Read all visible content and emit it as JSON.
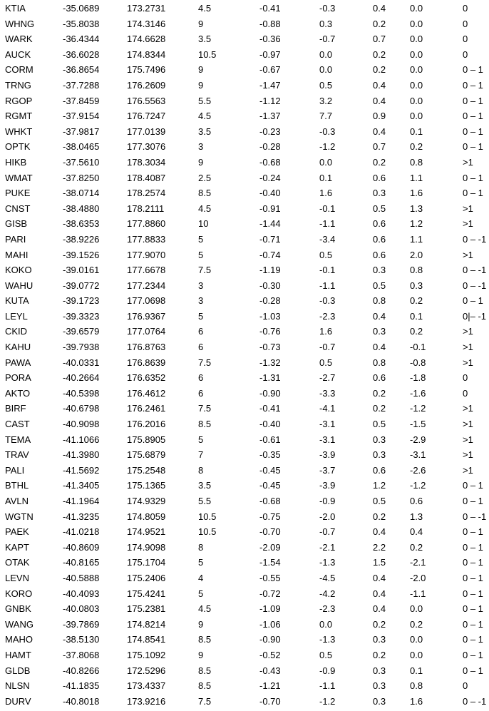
{
  "rows": [
    [
      "KTIA",
      "-35.0689",
      "173.2731",
      "4.5",
      "-0.41",
      "-0.3",
      "0.4",
      "0.0",
      "0"
    ],
    [
      "WHNG",
      "-35.8038",
      "174.3146",
      "9",
      "-0.88",
      "0.3",
      "0.2",
      "0.0",
      "0"
    ],
    [
      "WARK",
      "-36.4344",
      "174.6628",
      "3.5",
      "-0.36",
      "-0.7",
      "0.7",
      "0.0",
      "0"
    ],
    [
      "AUCK",
      "-36.6028",
      "174.8344",
      "10.5",
      "-0.97",
      "0.0",
      "0.2",
      "0.0",
      "0"
    ],
    [
      "CORM",
      "-36.8654",
      "175.7496",
      "9",
      "-0.67",
      "0.0",
      "0.2",
      "0.0",
      "0 – 1"
    ],
    [
      "TRNG",
      "-37.7288",
      "176.2609",
      "9",
      "-1.47",
      "0.5",
      "0.4",
      "0.0",
      "0 – 1"
    ],
    [
      "RGOP",
      "-37.8459",
      "176.5563",
      "5.5",
      "-1.12",
      "3.2",
      "0.4",
      "0.0",
      "0 – 1"
    ],
    [
      "RGMT",
      "-37.9154",
      "176.7247",
      "4.5",
      "-1.37",
      "7.7",
      "0.9",
      "0.0",
      "0 – 1"
    ],
    [
      "WHKT",
      "-37.9817",
      "177.0139",
      "3.5",
      "-0.23",
      "-0.3",
      "0.4",
      "0.1",
      "0 – 1"
    ],
    [
      "OPTK",
      "-38.0465",
      "177.3076",
      "3",
      "-0.28",
      "-1.2",
      "0.7",
      "0.2",
      "0 – 1"
    ],
    [
      "HIKB",
      "-37.5610",
      "178.3034",
      "9",
      "-0.68",
      "0.0",
      "0.2",
      "0.8",
      ">1"
    ],
    [
      "WMAT",
      "-37.8250",
      "178.4087",
      "2.5",
      "-0.24",
      "0.1",
      "0.6",
      "1.1",
      "0 – 1"
    ],
    [
      "PUKE",
      "-38.0714",
      "178.2574",
      "8.5",
      "-0.40",
      "1.6",
      "0.3",
      "1.6",
      "0 – 1"
    ],
    [
      "CNST",
      "-38.4880",
      "178.2111",
      "4.5",
      "-0.91",
      "-0.1",
      "0.5",
      "1.3",
      ">1"
    ],
    [
      "GISB",
      "-38.6353",
      "177.8860",
      "10",
      "-1.44",
      "-1.1",
      "0.6",
      "1.2",
      ">1"
    ],
    [
      "PARI",
      "-38.9226",
      "177.8833",
      "5",
      "-0.71",
      "-3.4",
      "0.6",
      "1.1",
      "0 – -1"
    ],
    [
      "MAHI",
      "-39.1526",
      "177.9070",
      "5",
      "-0.74",
      "0.5",
      "0.6",
      "2.0",
      ">1"
    ],
    [
      "KOKO",
      "-39.0161",
      "177.6678",
      "7.5",
      "-1.19",
      "-0.1",
      "0.3",
      "0.8",
      "0 – -1"
    ],
    [
      "WAHU",
      "-39.0772",
      "177.2344",
      "3",
      "-0.30",
      "-1.1",
      "0.5",
      "0.3",
      "0 – -1"
    ],
    [
      "KUTA",
      "-39.1723",
      "177.0698",
      "3",
      "-0.28",
      "-0.3",
      "0.8",
      "0.2",
      "0 – 1"
    ],
    [
      "LEYL",
      "-39.3323",
      "176.9367",
      "5",
      "-1.03",
      "-2.3",
      "0.4",
      "0.1",
      "0|– -1"
    ],
    [
      "CKID",
      "-39.6579",
      "177.0764",
      "6",
      "-0.76",
      "1.6",
      "0.3",
      "0.2",
      ">1"
    ],
    [
      "KAHU",
      "-39.7938",
      "176.8763",
      "6",
      "-0.73",
      "-0.7",
      "0.4",
      "-0.1",
      ">1"
    ],
    [
      "PAWA",
      "-40.0331",
      "176.8639",
      "7.5",
      "-1.32",
      "0.5",
      "0.8",
      "-0.8",
      ">1"
    ],
    [
      "PORA",
      "-40.2664",
      "176.6352",
      "6",
      "-1.31",
      "-2.7",
      "0.6",
      "-1.8",
      "0"
    ],
    [
      "AKTO",
      "-40.5398",
      "176.4612",
      "6",
      "-0.90",
      "-3.3",
      "0.2",
      "-1.6",
      "0"
    ],
    [
      "BIRF",
      "-40.6798",
      "176.2461",
      "7.5",
      "-0.41",
      "-4.1",
      "0.2",
      "-1.2",
      ">1"
    ],
    [
      "CAST",
      "-40.9098",
      "176.2016",
      "8.5",
      "-0.40",
      "-3.1",
      "0.5",
      "-1.5",
      ">1"
    ],
    [
      "TEMA",
      "-41.1066",
      "175.8905",
      "5",
      "-0.61",
      "-3.1",
      "0.3",
      "-2.9",
      ">1"
    ],
    [
      "TRAV",
      "-41.3980",
      "175.6879",
      "7",
      "-0.35",
      "-3.9",
      "0.3",
      "-3.1",
      ">1"
    ],
    [
      "PALI",
      "-41.5692",
      "175.2548",
      "8",
      "-0.45",
      "-3.7",
      "0.6",
      "-2.6",
      ">1"
    ],
    [
      "BTHL",
      "-41.3405",
      "175.1365",
      "3.5",
      "-0.45",
      "-3.9",
      "1.2",
      "-1.2",
      "0 – 1"
    ],
    [
      "AVLN",
      "-41.1964",
      "174.9329",
      "5.5",
      "-0.68",
      "-0.9",
      "0.5",
      "0.6",
      "0 – 1"
    ],
    [
      "WGTN",
      "-41.3235",
      "174.8059",
      "10.5",
      "-0.75",
      "-2.0",
      "0.2",
      "1.3",
      "0 – -1"
    ],
    [
      "PAEK",
      "-41.0218",
      "174.9521",
      "10.5",
      "-0.70",
      "-0.7",
      "0.4",
      "0.4",
      "0 – 1"
    ],
    [
      "KAPT",
      "-40.8609",
      "174.9098",
      "8",
      "-2.09",
      "-2.1",
      "2.2",
      "0.2",
      "0 – 1"
    ],
    [
      "OTAK",
      "-40.8165",
      "175.1704",
      "5",
      "-1.54",
      "-1.3",
      "1.5",
      "-2.1",
      "0 – 1"
    ],
    [
      "LEVN",
      "-40.5888",
      "175.2406",
      "4",
      "-0.55",
      "-4.5",
      "0.4",
      "-2.0",
      "0 – 1"
    ],
    [
      "KORO",
      "-40.4093",
      "175.4241",
      "5",
      "-0.72",
      "-4.2",
      "0.4",
      "-1.1",
      "0 – 1"
    ],
    [
      "GNBK",
      "-40.0803",
      "175.2381",
      "4.5",
      "-1.09",
      "-2.3",
      "0.4",
      "0.0",
      "0 – 1"
    ],
    [
      "WANG",
      "-39.7869",
      "174.8214",
      "9",
      "-1.06",
      "0.0",
      "0.2",
      "0.2",
      "0 – 1"
    ],
    [
      "MAHO",
      "-38.5130",
      "174.8541",
      "8.5",
      "-0.90",
      "-1.3",
      "0.3",
      "0.0",
      "0 – 1"
    ],
    [
      "HAMT",
      "-37.8068",
      "175.1092",
      "9",
      "-0.52",
      "0.5",
      "0.2",
      "0.0",
      "0 – 1"
    ],
    [
      "GLDB",
      "-40.8266",
      "172.5296",
      "8.5",
      "-0.43",
      "-0.9",
      "0.3",
      "0.1",
      "0 – 1"
    ],
    [
      "NLSN",
      "-41.1835",
      "173.4337",
      "8.5",
      "-1.21",
      "-1.1",
      "0.3",
      "0.8",
      "0"
    ],
    [
      "DURV",
      "-40.8018",
      "173.9216",
      "7.5",
      "-0.70",
      "-1.2",
      "0.3",
      "1.6",
      "0 – -1"
    ]
  ]
}
